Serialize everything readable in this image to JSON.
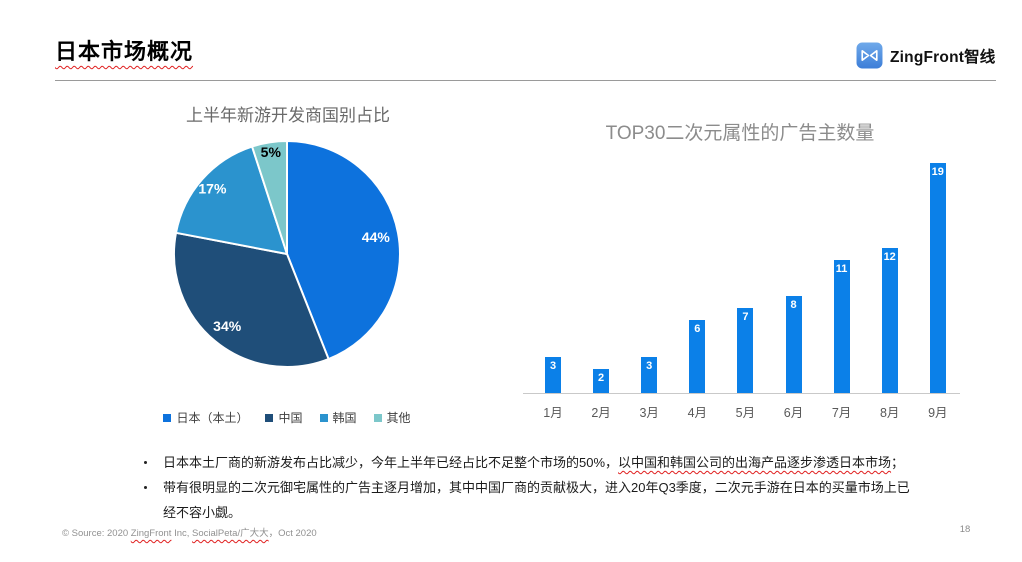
{
  "header": {
    "title": "日本市场概况",
    "logo_text": "ZingFront智线",
    "logo_color": "#4a8bdf"
  },
  "chart_data": [
    {
      "type": "pie",
      "title": "上半年新游开发商国别占比",
      "categories": [
        "日本（本土）",
        "中国",
        "韩国",
        "其他"
      ],
      "values": [
        44,
        34,
        17,
        5
      ],
      "unit": "%",
      "colors": [
        "#0d72dd",
        "#1f4e79",
        "#2b93ce",
        "#7cc7ca"
      ],
      "label_colors": [
        "#ffffff",
        "#ffffff",
        "#ffffff",
        "#000000"
      ],
      "start_angle_deg": 0,
      "direction": "clockwise",
      "legend_position": "bottom"
    },
    {
      "type": "bar",
      "title": "TOP30二次元属性的广告主数量",
      "categories": [
        "1月",
        "2月",
        "3月",
        "4月",
        "5月",
        "6月",
        "7月",
        "8月",
        "9月"
      ],
      "values": [
        3,
        2,
        3,
        6,
        7,
        8,
        11,
        12,
        19
      ],
      "bar_color": "#0b80e8",
      "label_color": "#ffffff",
      "value_labels": "inside-top",
      "ylim": [
        0,
        19
      ],
      "grid": false,
      "y_axis_visible": false
    }
  ],
  "notes": {
    "bullets": [
      {
        "text": "日本本土厂商的新游发布占比减少，今年上半年已经占比不足整个市场的50%，",
        "spellcheck_text": "以中国和韩国公司的出海产品逐步渗透日本市场",
        "tail": "；"
      },
      {
        "text": "带有很明显的二次元御宅属性的广告主逐月增加，其中中国厂商的贡献极大，进入20年Q3季度，二次元手游在日本的买量市场上已经不容小觑。",
        "spellcheck_text": "",
        "tail": ""
      }
    ]
  },
  "footer": {
    "source_prefix": "© Source: 2020 ",
    "source_brand1": "ZingFront",
    "source_mid": " Inc, ",
    "source_brand2": "SocialPeta/广大大",
    "source_suffix": "，Oct 2020",
    "page_number": "18"
  }
}
